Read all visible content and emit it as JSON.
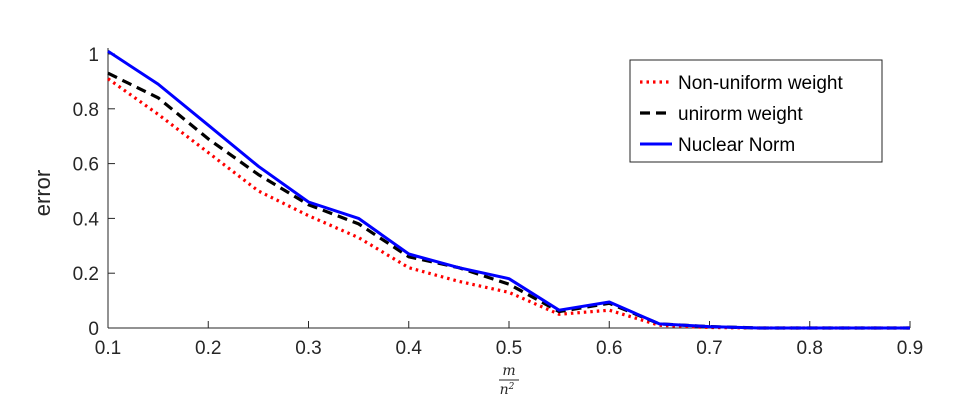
{
  "chart_data": {
    "type": "line",
    "title": "",
    "xlabel_numerator": "m",
    "xlabel_denominator": "n2",
    "ylabel": "error",
    "xlim": [
      0.1,
      0.9
    ],
    "ylim": [
      0,
      1
    ],
    "xticks": [
      "0.1",
      "0.2",
      "0.3",
      "0.4",
      "0.5",
      "0.6",
      "0.7",
      "0.8",
      "0.9"
    ],
    "yticks": [
      "0",
      "0.2",
      "0.4",
      "0.6",
      "0.8",
      "1"
    ],
    "grid": false,
    "legend_position": "top-right",
    "x": [
      0.1,
      0.15,
      0.2,
      0.25,
      0.3,
      0.35,
      0.4,
      0.45,
      0.5,
      0.55,
      0.6,
      0.65,
      0.7,
      0.75,
      0.8,
      0.85,
      0.9
    ],
    "series": [
      {
        "name": "Non-uniform weight",
        "color": "#ff0000",
        "style": "dotted",
        "values": [
          0.91,
          0.78,
          0.64,
          0.5,
          0.41,
          0.33,
          0.22,
          0.17,
          0.13,
          0.05,
          0.065,
          0.01,
          0.002,
          0.0,
          0.0,
          0.0,
          0.0
        ]
      },
      {
        "name": "unirorm weight",
        "color": "#000000",
        "style": "dashed",
        "values": [
          0.93,
          0.84,
          0.69,
          0.56,
          0.45,
          0.38,
          0.26,
          0.22,
          0.16,
          0.06,
          0.09,
          0.015,
          0.005,
          0.0,
          0.0,
          0.0,
          0.0
        ]
      },
      {
        "name": "Nuclear Norm",
        "color": "#0000ff",
        "style": "solid",
        "values": [
          1.01,
          0.89,
          0.74,
          0.59,
          0.46,
          0.4,
          0.27,
          0.22,
          0.18,
          0.065,
          0.095,
          0.015,
          0.005,
          0.0,
          0.0,
          0.0,
          0.0
        ]
      }
    ]
  }
}
